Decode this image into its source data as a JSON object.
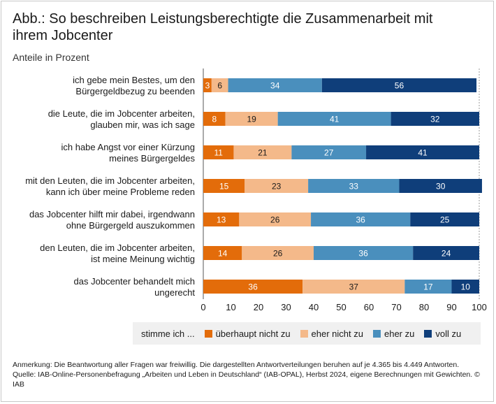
{
  "header": {
    "title": "Abb.: So beschreiben Leistungsberechtigte die Zusammenarbeit mit ihrem Jobcenter",
    "subtitle": "Anteile in Prozent"
  },
  "chart_data": {
    "type": "bar",
    "orientation": "horizontal",
    "stacked": true,
    "xlim": [
      0,
      100
    ],
    "xticks": [
      "0",
      "10",
      "20",
      "30",
      "40",
      "50",
      "60",
      "70",
      "80",
      "90",
      "100"
    ],
    "categories": [
      [
        "ich gebe mein Bestes, um den",
        "Bürgergeldbezug zu beenden"
      ],
      [
        "die Leute, die im Jobcenter arbeiten,",
        "glauben mir, was ich sage"
      ],
      [
        "ich habe Angst vor einer Kürzung",
        "meines Bürgergeldes"
      ],
      [
        "mit den Leuten, die im Jobcenter arbeiten,",
        "kann ich über meine Probleme reden"
      ],
      [
        "das Jobcenter hilft mir dabei, irgendwann",
        "ohne Bürgergeld auszukommen"
      ],
      [
        "den Leuten, die im Jobcenter arbeiten,",
        "ist meine Meinung wichtig"
      ],
      [
        "das Jobcenter behandelt mich",
        "ungerecht"
      ]
    ],
    "series": [
      {
        "name": "überhaupt nicht zu",
        "color": "#e36c0a",
        "label_color": "#ffffff",
        "values": [
          3,
          8,
          11,
          15,
          13,
          14,
          36
        ]
      },
      {
        "name": "eher nicht zu",
        "color": "#f4b98a",
        "label_color": "#1a1a1a",
        "values": [
          6,
          19,
          21,
          23,
          26,
          26,
          37
        ]
      },
      {
        "name": "eher zu",
        "color": "#4a8fbd",
        "label_color": "#ffffff",
        "values": [
          34,
          41,
          27,
          33,
          36,
          36,
          17
        ]
      },
      {
        "name": "voll zu",
        "color": "#0f3e7a",
        "label_color": "#ffffff",
        "values": [
          56,
          32,
          41,
          30,
          25,
          24,
          10
        ]
      }
    ],
    "legend_prefix": "stimme ich ...",
    "legend_position": "bottom"
  },
  "notes": {
    "line1": "Anmerkung: Die Beantwortung aller Fragen war freiwillig. Die dargestellten Antwortverteilungen beruhen auf je 4.365 bis 4.449 Antworten.",
    "line2": "Quelle: IAB-Online-Personenbefragung „Arbeiten und Leben in Deutschland“ (IAB-OPAL), Herbst 2024, eigene Berechnungen mit Gewichten.  © IAB"
  }
}
